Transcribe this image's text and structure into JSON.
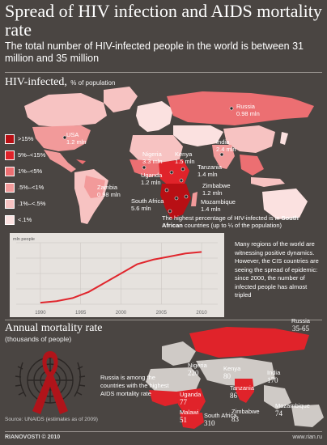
{
  "title": "Spread of HIV infection and AIDS mortality rate",
  "subtitle": "The total number of HIV-infected people in the world is between 31 million and 35 million",
  "hiv_section": {
    "heading": "HIV-infected,",
    "unit": "% of population"
  },
  "legend": [
    {
      "label": ">15%",
      "color": "#b80f14"
    },
    {
      "label": "5%–<15%",
      "color": "#e0232a"
    },
    {
      "label": "1%–<5%",
      "color": "#ec6f72"
    },
    {
      "label": ".5%–<1%",
      "color": "#f29a9a"
    },
    {
      "label": ".1%–<.5%",
      "color": "#f7c3c2"
    },
    {
      "label": "<.1%",
      "color": "#fbe1e0"
    }
  ],
  "hiv_labels": {
    "russia": {
      "name": "Russia",
      "value": "0.98 mln"
    },
    "usa": {
      "name": "USA",
      "value": "1.2 mln"
    },
    "india": {
      "name": "India",
      "value": "2.4 mln"
    },
    "nigeria": {
      "name": "Nigeria",
      "value": "3.3 mln"
    },
    "kenya": {
      "name": "Kenya",
      "value": "1.5 mln"
    },
    "uganda": {
      "name": "Uganda",
      "value": "1.2 mln"
    },
    "tanzania": {
      "name": "Tanzania",
      "value": "1.4 mln"
    },
    "zimbabwe": {
      "name": "Zimbabwe",
      "value": "1.2 mln"
    },
    "zambia": {
      "name": "Zambia",
      "value": "0.98 mln"
    },
    "mozambique": {
      "name": "Mozambique",
      "value": "1.4 mln"
    },
    "south_africa": {
      "name": "South Africa",
      "value": "5.6 mln"
    }
  },
  "southafrica_note": {
    "pre": "The highest percentage of HIV-infected is in ",
    "bold": "South African",
    "post": " countries (up to ¼ of the population)"
  },
  "chart_data": {
    "type": "line",
    "ylabel": "mln people",
    "x": [
      1990,
      1992,
      1994,
      1996,
      1998,
      2000,
      2002,
      2004,
      2006,
      2008,
      2010
    ],
    "values": [
      0.05,
      0.1,
      0.2,
      0.4,
      0.7,
      1.0,
      1.3,
      1.45,
      1.55,
      1.65,
      1.7
    ],
    "xticks": [
      "1990",
      "1995",
      "2000",
      "2005",
      "2010"
    ],
    "xlim": [
      1987,
      2012
    ],
    "ylim": [
      0,
      2
    ],
    "color": "#e0262d"
  },
  "cis_note": "Many regions of the world are witnessing positive dynamics. However, the CIS countries are seeing the spread of epidemic: since 2000, the number of infected people has almost tripled",
  "mortality_section": {
    "heading": "Annual mortality rate",
    "unit": "(thousands of people)"
  },
  "mortality_labels": {
    "russia": {
      "name": "Russia",
      "value": "35-65"
    },
    "nigeria": {
      "name": "Nigeria",
      "value": "220"
    },
    "kenya": {
      "name": "Kenya",
      "value": "80"
    },
    "india": {
      "name": "India",
      "value": "170"
    },
    "uganda": {
      "name": "Uganda",
      "value": "77"
    },
    "tanzania": {
      "name": "Tanzania",
      "value": "86"
    },
    "malawi": {
      "name": "Malawi",
      "value": "51"
    },
    "zimbabwe": {
      "name": "Zimbabwe",
      "value": "83"
    },
    "mozambique": {
      "name": "Mozambique",
      "value": "74"
    },
    "south_africa": {
      "name": "South Africa",
      "value": "310"
    }
  },
  "russia_note": "Russia is among the countries with the highest AIDS mortality rate",
  "source": "Source: UNAIDS (estimates as of 2009)",
  "footer_left": "RIANOVOSTI © 2010",
  "footer_right": "www.rian.ru"
}
